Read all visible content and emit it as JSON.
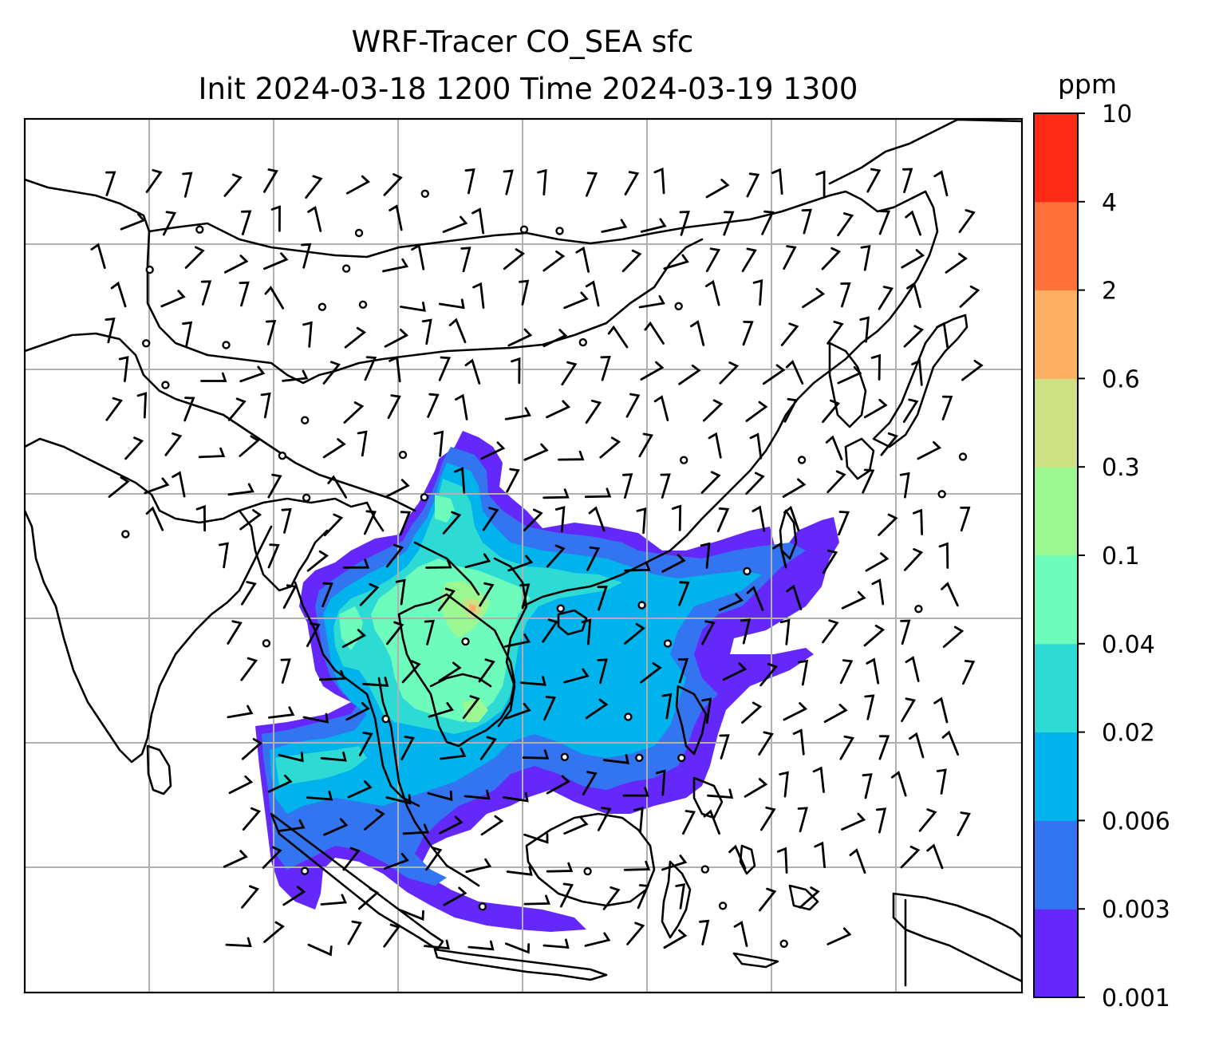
{
  "title": {
    "line1": "WRF-Tracer CO_SEA sfc",
    "line2": "Init 2024-03-18 1200 Time 2024-03-19 1300"
  },
  "colorbar": {
    "unit": "ppm",
    "levels": [
      "0.001",
      "0.003",
      "0.006",
      "0.02",
      "0.04",
      "0.1",
      "0.3",
      "0.6",
      "2",
      "4",
      "10"
    ],
    "colors": [
      "#6429fa",
      "#3375f0",
      "#00b3ec",
      "#2ddbd4",
      "#6efcbd",
      "#9cf890",
      "#cde084",
      "#fdb063",
      "#fe713a",
      "#fe2a15"
    ]
  },
  "map": {
    "variable": "CO_SEA",
    "level": "sfc",
    "init": "2024-03-18 1200",
    "valid": "2024-03-19 1300",
    "overlays": [
      "wind-barbs",
      "coastlines",
      "lat-lon-grid"
    ]
  }
}
